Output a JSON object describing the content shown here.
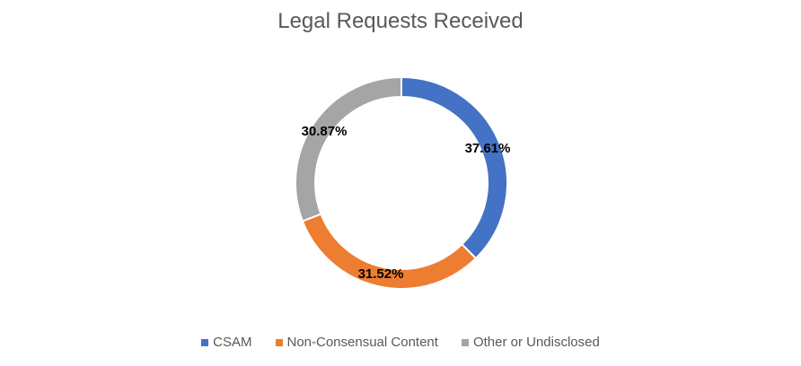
{
  "chart_data": {
    "type": "pie",
    "title": "Legal Requests Received",
    "legend_position": "bottom",
    "categories": [
      "CSAM",
      "Non-Consensual Content",
      "Other or Undisclosed"
    ],
    "values": [
      37.61,
      31.52,
      30.87
    ],
    "labels": [
      "37.61%",
      "31.52%",
      "30.87%"
    ],
    "colors": [
      "#4472C4",
      "#ED7D31",
      "#A5A5A5"
    ]
  }
}
